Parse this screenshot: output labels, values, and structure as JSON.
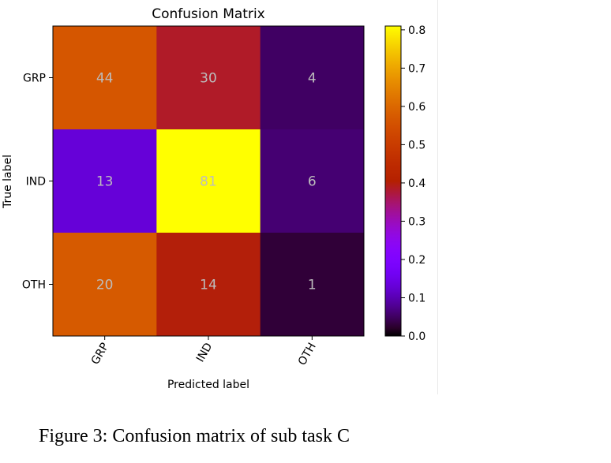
{
  "chart_data": {
    "type": "heatmap",
    "title": "Confusion Matrix",
    "xlabel": "Predicted label",
    "ylabel": "True label",
    "x_categories": [
      "GRP",
      "IND",
      "OTH"
    ],
    "y_categories": [
      "GRP",
      "IND",
      "OTH"
    ],
    "values": [
      [
        44,
        30,
        4
      ],
      [
        13,
        81,
        6
      ],
      [
        20,
        14,
        1
      ]
    ],
    "normalized": [
      [
        0.5641,
        0.3846,
        0.0513
      ],
      [
        0.13,
        0.81,
        0.06
      ],
      [
        0.5714,
        0.4,
        0.0286
      ]
    ],
    "colorbar": {
      "colormap": "gnuplot",
      "range": [
        0.0,
        0.81
      ],
      "ticks": [
        "0.0",
        "0.1",
        "0.2",
        "0.3",
        "0.4",
        "0.5",
        "0.6",
        "0.7",
        "0.8"
      ]
    }
  },
  "caption": "Figure 3: Confusion matrix of sub task C"
}
